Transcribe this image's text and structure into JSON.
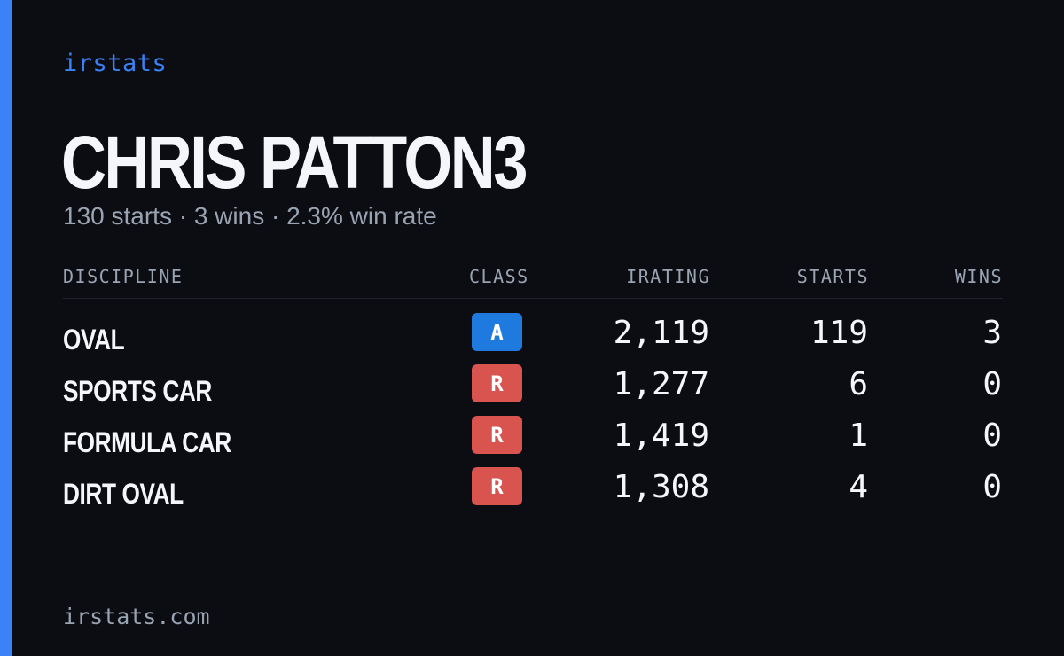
{
  "brand": "irstats",
  "player": {
    "name": "CHRIS PATTON3",
    "summary": "130 starts · 3 wins · 2.3% win rate"
  },
  "table": {
    "headers": {
      "discipline": "DISCIPLINE",
      "class": "CLASS",
      "irating": "IRATING",
      "starts": "STARTS",
      "wins": "WINS"
    },
    "rows": [
      {
        "discipline": "OVAL",
        "class": "A",
        "class_color": "#1f7ae0",
        "irating": "2,119",
        "starts": "119",
        "wins": "3"
      },
      {
        "discipline": "SPORTS CAR",
        "class": "R",
        "class_color": "#d9534f",
        "irating": "1,277",
        "starts": "6",
        "wins": "0"
      },
      {
        "discipline": "FORMULA CAR",
        "class": "R",
        "class_color": "#d9534f",
        "irating": "1,419",
        "starts": "1",
        "wins": "0"
      },
      {
        "discipline": "DIRT OVAL",
        "class": "R",
        "class_color": "#d9534f",
        "irating": "1,308",
        "starts": "4",
        "wins": "0"
      }
    ]
  },
  "footer": {
    "url": "irstats.com"
  },
  "colors": {
    "accent": "#3b82f6",
    "background": "#0b0d13",
    "muted_text": "#9aa3b2"
  }
}
